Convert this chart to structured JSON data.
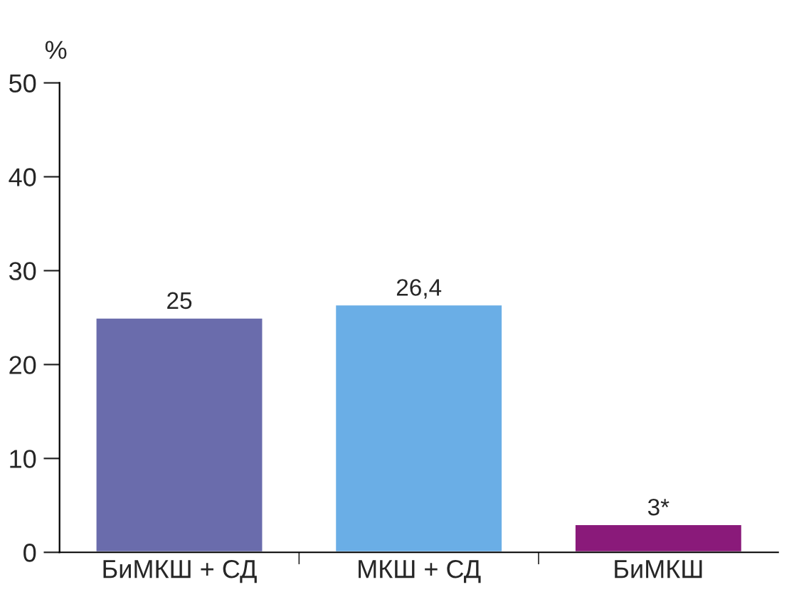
{
  "chart_data": {
    "type": "bar",
    "ylabel": "%",
    "categories": [
      "БиМКШ + СД",
      "МКШ + СД",
      "БиМКШ"
    ],
    "values": [
      25,
      26.4,
      3
    ],
    "colors": [
      "#6a6cac",
      "#6aaee6",
      "#8a1a7a"
    ],
    "value_labels": [
      "25",
      "26,4",
      "3*"
    ],
    "ylim": [
      0,
      50
    ],
    "yticks": [
      0,
      10,
      20,
      30,
      40,
      50
    ],
    "grid": false,
    "legend": false
  }
}
